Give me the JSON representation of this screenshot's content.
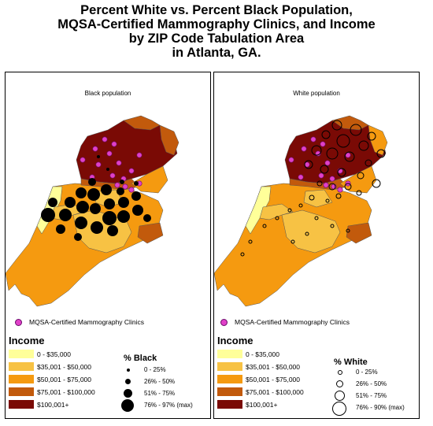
{
  "title": {
    "line1": "Percent White vs. Percent Black Population,",
    "line2": "MQSA-Certified Mammography Clinics, and Income",
    "line3": "by ZIP Code Tabulation Area",
    "line4": "in Atlanta, GA."
  },
  "colors": {
    "inc1": "#ffff99",
    "inc2": "#f7c244",
    "inc3": "#f59a10",
    "inc4": "#c25a0c",
    "inc5": "#7a0a05",
    "clinic": "#e040c8",
    "outline": "#555555"
  },
  "left_panel": {
    "heading": "Black population",
    "clinic_label": "MQSA-Certified Mammography Clinics",
    "income_title": "Income",
    "income_classes": [
      "0 - $35,000",
      "$35,001 - $50,000",
      "$50,001 - $75,000",
      "$75,001 - $100,000",
      "$100,001+"
    ],
    "pct_title": "% Black",
    "pct_classes": [
      "0 - 25%",
      "26% - 50%",
      "51% - 75%",
      "76% - 97% (max)"
    ]
  },
  "right_panel": {
    "heading": "White population",
    "clinic_label": "MQSA-Certified Mammography Clinics",
    "income_title": "Income",
    "income_classes": [
      "0 - $35,000",
      "$35,001 - $50,000",
      "$50,001 - $75,000",
      "$75,001 - $100,000",
      "$100,001+"
    ],
    "pct_title": "% White",
    "pct_classes": [
      "0 - 25%",
      "26% - 50%",
      "51% - 75%",
      "76% - 90% (max)"
    ]
  }
}
